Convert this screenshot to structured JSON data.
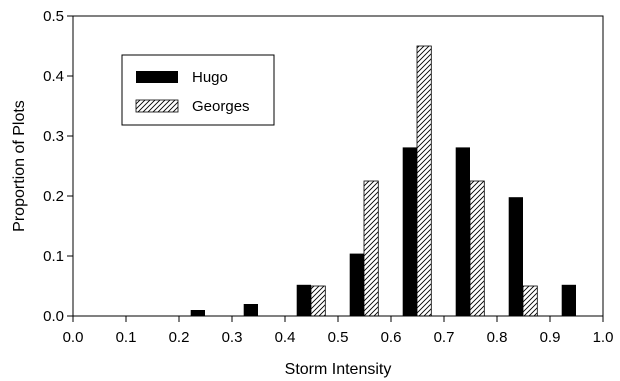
{
  "chart_data": {
    "type": "bar",
    "xlabel": "Storm Intensity",
    "ylabel": "Proportion of Plots",
    "xlim": [
      0.0,
      1.0
    ],
    "ylim": [
      0.0,
      0.5
    ],
    "x_ticks": [
      "0.0",
      "0.1",
      "0.2",
      "0.3",
      "0.4",
      "0.5",
      "0.6",
      "0.7",
      "0.8",
      "0.9",
      "1.0"
    ],
    "y_ticks": [
      "0.0",
      "0.1",
      "0.2",
      "0.3",
      "0.4",
      "0.5"
    ],
    "bin_width": 0.1,
    "grid": false,
    "legend_position": "top-left",
    "series": [
      {
        "name": "Hugo",
        "fill": "solid",
        "color": "#000000",
        "x": [
          0.2,
          0.3,
          0.4,
          0.5,
          0.6,
          0.7,
          0.8,
          0.9
        ],
        "values": [
          0.01,
          0.02,
          0.052,
          0.104,
          0.281,
          0.281,
          0.198,
          0.052
        ]
      },
      {
        "name": "Georges",
        "fill": "hatched",
        "color": "#000000",
        "x": [
          0.4,
          0.5,
          0.6,
          0.7,
          0.8
        ],
        "values": [
          0.05,
          0.225,
          0.45,
          0.225,
          0.05
        ]
      }
    ]
  }
}
